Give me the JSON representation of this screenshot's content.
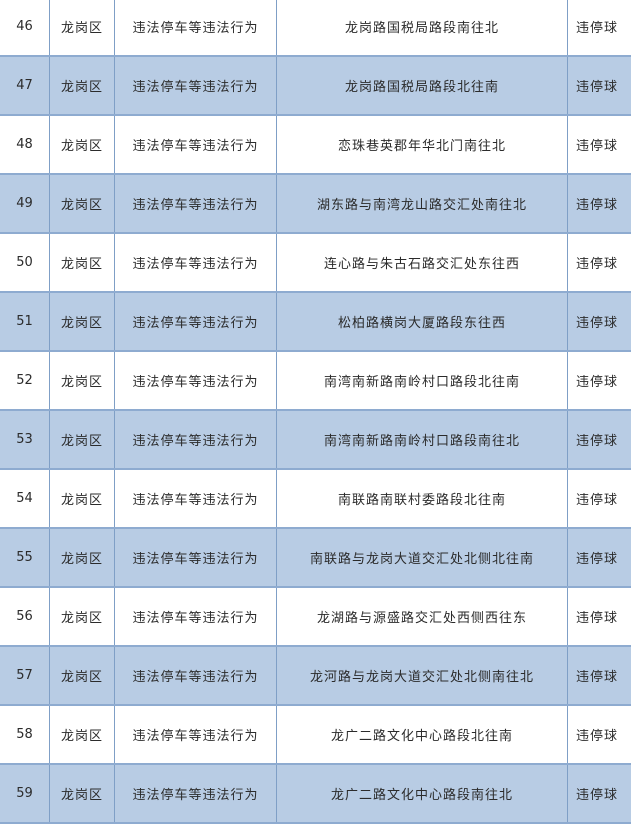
{
  "table": {
    "rows": [
      {
        "no": "46",
        "district": "龙岗区",
        "violation": "违法停车等违法行为",
        "location": "龙岗路国税局路段南往北",
        "device": "违停球"
      },
      {
        "no": "47",
        "district": "龙岗区",
        "violation": "违法停车等违法行为",
        "location": "龙岗路国税局路段北往南",
        "device": "违停球"
      },
      {
        "no": "48",
        "district": "龙岗区",
        "violation": "违法停车等违法行为",
        "location": "恋珠巷英郡年华北门南往北",
        "device": "违停球"
      },
      {
        "no": "49",
        "district": "龙岗区",
        "violation": "违法停车等违法行为",
        "location": "湖东路与南湾龙山路交汇处南往北",
        "device": "违停球"
      },
      {
        "no": "50",
        "district": "龙岗区",
        "violation": "违法停车等违法行为",
        "location": "连心路与朱古石路交汇处东往西",
        "device": "违停球"
      },
      {
        "no": "51",
        "district": "龙岗区",
        "violation": "违法停车等违法行为",
        "location": "松柏路横岗大厦路段东往西",
        "device": "违停球"
      },
      {
        "no": "52",
        "district": "龙岗区",
        "violation": "违法停车等违法行为",
        "location": "南湾南新路南岭村口路段北往南",
        "device": "违停球"
      },
      {
        "no": "53",
        "district": "龙岗区",
        "violation": "违法停车等违法行为",
        "location": "南湾南新路南岭村口路段南往北",
        "device": "违停球"
      },
      {
        "no": "54",
        "district": "龙岗区",
        "violation": "违法停车等违法行为",
        "location": "南联路南联村委路段北往南",
        "device": "违停球"
      },
      {
        "no": "55",
        "district": "龙岗区",
        "violation": "违法停车等违法行为",
        "location": "南联路与龙岗大道交汇处北侧北往南",
        "device": "违停球"
      },
      {
        "no": "56",
        "district": "龙岗区",
        "violation": "违法停车等违法行为",
        "location": "龙湖路与源盛路交汇处西侧西往东",
        "device": "违停球"
      },
      {
        "no": "57",
        "district": "龙岗区",
        "violation": "违法停车等违法行为",
        "location": "龙河路与龙岗大道交汇处北侧南往北",
        "device": "违停球"
      },
      {
        "no": "58",
        "district": "龙岗区",
        "violation": "违法停车等违法行为",
        "location": "龙广二路文化中心路段北往南",
        "device": "违停球"
      },
      {
        "no": "59",
        "district": "龙岗区",
        "violation": "违法停车等违法行为",
        "location": "龙广二路文化中心路段南往北",
        "device": "违停球"
      }
    ]
  },
  "colors": {
    "row_alt": "#b8cce4",
    "border": "#7f9fc6"
  }
}
